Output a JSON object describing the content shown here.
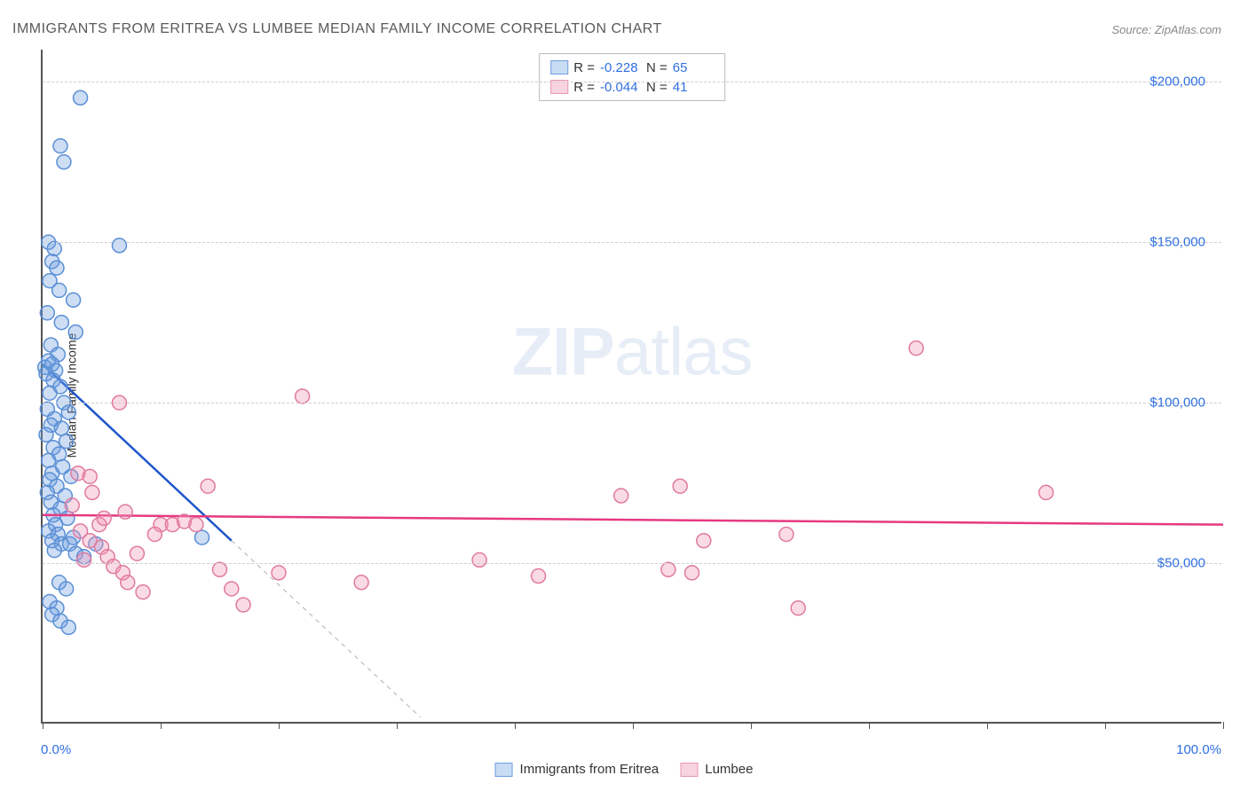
{
  "title": "IMMIGRANTS FROM ERITREA VS LUMBEE MEDIAN FAMILY INCOME CORRELATION CHART",
  "source": "Source: ZipAtlas.com",
  "ylabel": "Median Family Income",
  "watermark_zip": "ZIP",
  "watermark_atlas": "atlas",
  "xaxis_min_label": "0.0%",
  "xaxis_max_label": "100.0%",
  "chart": {
    "type": "scatter",
    "background_color": "#ffffff",
    "grid_color": "#d0d0d0",
    "axis_color": "#555555",
    "xlim": [
      0,
      100
    ],
    "ylim": [
      0,
      210000
    ],
    "yticks": [
      50000,
      100000,
      150000,
      200000
    ],
    "ytick_labels": [
      "$50,000",
      "$100,000",
      "$150,000",
      "$200,000"
    ],
    "xtick_positions": [
      0,
      10,
      20,
      30,
      40,
      50,
      60,
      70,
      80,
      90,
      100
    ],
    "marker_radius": 8,
    "marker_stroke_width": 1.5,
    "trendline_width": 2.5,
    "series": [
      {
        "name": "Immigrants from Eritrea",
        "fill_color": "rgba(111,158,224,0.35)",
        "stroke_color": "#5a8fd6",
        "swatch_border": "#6f9ee0",
        "swatch_fill": "#c8dcf4",
        "R": "-0.228",
        "N": "65",
        "trendline": {
          "x1": 0,
          "y1": 112000,
          "x2": 16,
          "y2": 57000,
          "color": "#1e56c9"
        },
        "trendline_ext": {
          "x1": 16,
          "y1": 57000,
          "x2": 32,
          "y2": 2000,
          "dash": "5,5",
          "color": "#b0b0b0"
        },
        "points": [
          [
            3.2,
            195000
          ],
          [
            1.5,
            180000
          ],
          [
            1.8,
            175000
          ],
          [
            0.5,
            150000
          ],
          [
            1.0,
            148000
          ],
          [
            6.5,
            149000
          ],
          [
            0.8,
            144000
          ],
          [
            1.2,
            142000
          ],
          [
            0.6,
            138000
          ],
          [
            1.4,
            135000
          ],
          [
            2.6,
            132000
          ],
          [
            0.4,
            128000
          ],
          [
            1.6,
            125000
          ],
          [
            2.8,
            122000
          ],
          [
            0.7,
            118000
          ],
          [
            1.3,
            115000
          ],
          [
            0.5,
            113000
          ],
          [
            0.2,
            111000
          ],
          [
            0.8,
            112000
          ],
          [
            1.1,
            110000
          ],
          [
            0.3,
            109000
          ],
          [
            0.9,
            107000
          ],
          [
            1.5,
            105000
          ],
          [
            0.6,
            103000
          ],
          [
            1.8,
            100000
          ],
          [
            0.4,
            98000
          ],
          [
            2.2,
            97000
          ],
          [
            1.0,
            95000
          ],
          [
            0.7,
            93000
          ],
          [
            1.6,
            92000
          ],
          [
            0.3,
            90000
          ],
          [
            2.0,
            88000
          ],
          [
            0.9,
            86000
          ],
          [
            1.4,
            84000
          ],
          [
            0.5,
            82000
          ],
          [
            1.7,
            80000
          ],
          [
            0.8,
            78000
          ],
          [
            2.4,
            77000
          ],
          [
            0.6,
            76000
          ],
          [
            1.2,
            74000
          ],
          [
            0.4,
            72000
          ],
          [
            1.9,
            71000
          ],
          [
            0.7,
            69000
          ],
          [
            1.5,
            67000
          ],
          [
            0.9,
            65000
          ],
          [
            2.1,
            64000
          ],
          [
            1.1,
            62000
          ],
          [
            0.5,
            60000
          ],
          [
            1.3,
            59000
          ],
          [
            2.6,
            58000
          ],
          [
            0.8,
            57000
          ],
          [
            1.6,
            56000
          ],
          [
            2.3,
            56000
          ],
          [
            4.5,
            56000
          ],
          [
            1.0,
            54000
          ],
          [
            2.8,
            53000
          ],
          [
            3.5,
            52000
          ],
          [
            13.5,
            58000
          ],
          [
            1.4,
            44000
          ],
          [
            2.0,
            42000
          ],
          [
            0.6,
            38000
          ],
          [
            1.2,
            36000
          ],
          [
            0.8,
            34000
          ],
          [
            1.5,
            32000
          ],
          [
            2.2,
            30000
          ]
        ]
      },
      {
        "name": "Lumbee",
        "fill_color": "rgba(240,150,180,0.35)",
        "stroke_color": "#e07aa0",
        "swatch_border": "#e896b3",
        "swatch_fill": "#f8d4e0",
        "R": "-0.044",
        "N": "41",
        "trendline": {
          "x1": 0,
          "y1": 65000,
          "x2": 100,
          "y2": 62000,
          "color": "#e63980"
        },
        "points": [
          [
            74,
            117000
          ],
          [
            6.5,
            100000
          ],
          [
            22,
            102000
          ],
          [
            3,
            78000
          ],
          [
            4,
            77000
          ],
          [
            4.2,
            72000
          ],
          [
            14,
            74000
          ],
          [
            49,
            71000
          ],
          [
            54,
            74000
          ],
          [
            2.5,
            68000
          ],
          [
            7,
            66000
          ],
          [
            85,
            72000
          ],
          [
            10,
            62000
          ],
          [
            11,
            62000
          ],
          [
            12,
            63000
          ],
          [
            13,
            62000
          ],
          [
            9.5,
            59000
          ],
          [
            37,
            51000
          ],
          [
            4,
            57000
          ],
          [
            5,
            55000
          ],
          [
            8,
            53000
          ],
          [
            15,
            48000
          ],
          [
            16,
            42000
          ],
          [
            17,
            37000
          ],
          [
            20,
            47000
          ],
          [
            27,
            44000
          ],
          [
            42,
            46000
          ],
          [
            53,
            48000
          ],
          [
            55,
            47000
          ],
          [
            56,
            57000
          ],
          [
            63,
            59000
          ],
          [
            64,
            36000
          ],
          [
            3.5,
            51000
          ],
          [
            5.5,
            52000
          ],
          [
            6,
            49000
          ],
          [
            6.8,
            47000
          ],
          [
            7.2,
            44000
          ],
          [
            8.5,
            41000
          ],
          [
            3.2,
            60000
          ],
          [
            4.8,
            62000
          ],
          [
            5.2,
            64000
          ]
        ]
      }
    ]
  },
  "legend_top": {
    "R_label": "R =",
    "N_label": "N ="
  }
}
